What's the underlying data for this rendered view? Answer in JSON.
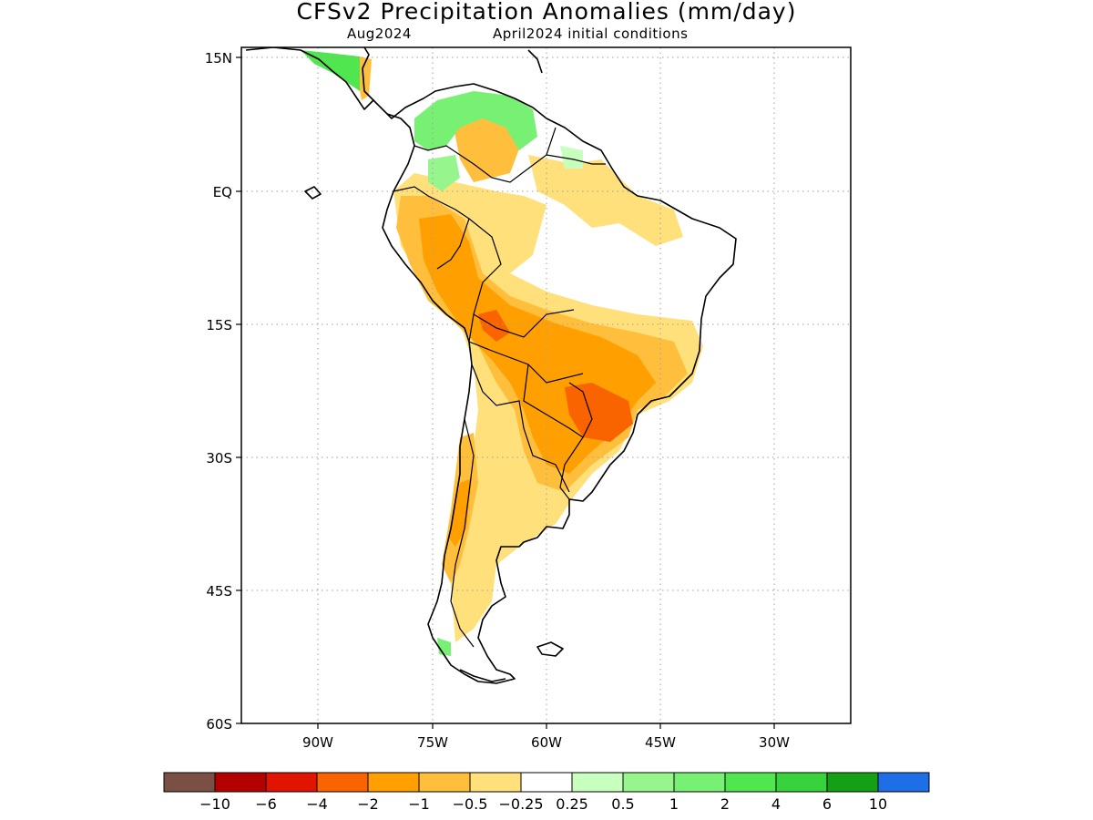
{
  "title": "CFSv2 Precipitation Anomalies (mm/day)",
  "subtitle_left": "Aug2024",
  "subtitle_right": "April2024 initial conditions",
  "lat_labels": [
    "15N",
    "EQ",
    "15S",
    "30S",
    "45S",
    "60S"
  ],
  "lon_labels": [
    "90W",
    "75W",
    "60W",
    "45W",
    "30W"
  ],
  "colorbar": {
    "colors": [
      "#7b5044",
      "#b40000",
      "#e01400",
      "#fa6400",
      "#ff9f00",
      "#ffbf3c",
      "#ffe07a",
      "#ffffff",
      "#c8ffbe",
      "#96f58c",
      "#78f073",
      "#50e650",
      "#37d23c",
      "#14a014",
      "#1e6ee6"
    ],
    "labels": [
      "-10",
      "-6",
      "-4",
      "-2",
      "-1",
      "-0.5",
      "-0.25",
      "0.25",
      "0.5",
      "1",
      "2",
      "4",
      "6",
      "10"
    ]
  },
  "colors": {
    "land_outline": "#000000",
    "grid": "#a0a0a0"
  }
}
